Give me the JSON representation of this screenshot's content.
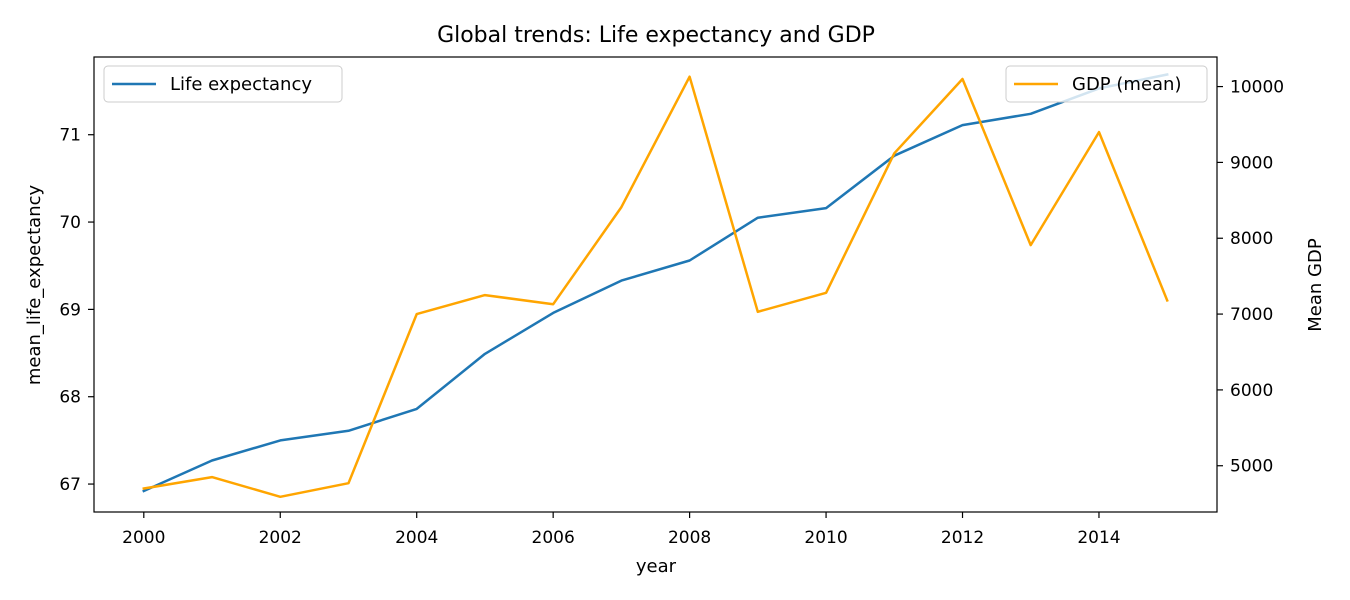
{
  "chart_data": {
    "type": "line",
    "title": "Global trends: Life expectancy and GDP",
    "xlabel": "year",
    "ylabel_left": "mean_life_expectancy",
    "ylabel_right": "Mean GDP",
    "x": [
      2000,
      2001,
      2002,
      2003,
      2004,
      2005,
      2006,
      2007,
      2008,
      2009,
      2010,
      2011,
      2012,
      2013,
      2014,
      2015
    ],
    "xlim": [
      1999.27,
      2015.73
    ],
    "ylim_left": [
      66.68,
      71.89
    ],
    "ylim_right": [
      4390,
      10390
    ],
    "x_ticks": [
      2000,
      2002,
      2004,
      2006,
      2008,
      2010,
      2012,
      2014
    ],
    "y_ticks_left": [
      67,
      68,
      69,
      70,
      71
    ],
    "y_ticks_right": [
      5000,
      6000,
      7000,
      8000,
      9000,
      10000
    ],
    "series": [
      {
        "name": "Life expectancy",
        "axis": "left",
        "color": "#1f77b4",
        "values": [
          66.92,
          67.27,
          67.5,
          67.61,
          67.86,
          68.49,
          68.96,
          69.33,
          69.56,
          70.05,
          70.16,
          70.76,
          71.11,
          71.24,
          71.53,
          71.69
        ]
      },
      {
        "name": "GDP (mean)",
        "axis": "right",
        "color": "#ffa500",
        "values": [
          4700,
          4850,
          4590,
          4770,
          7000,
          7250,
          7130,
          8410,
          10130,
          7030,
          7280,
          9120,
          10100,
          7910,
          9400,
          7180
        ]
      }
    ],
    "legend_left": "upper-left",
    "legend_right": "upper-right",
    "grid": false
  }
}
